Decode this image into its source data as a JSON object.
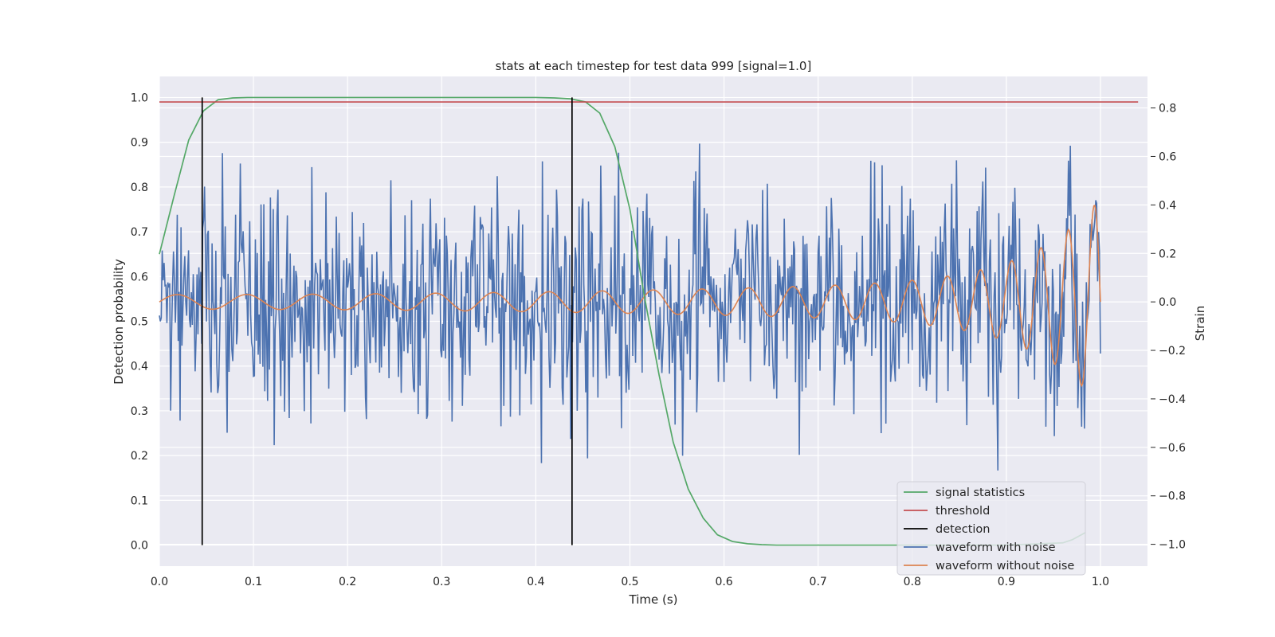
{
  "chart_data": {
    "type": "line",
    "title": "stats at each timestep for test data 999 [signal=1.0]",
    "xlabel": "Time (s)",
    "ylabel": "Detection probability",
    "y2label": "Strain",
    "xlim": [
      0.0,
      1.05
    ],
    "ylim": [
      -0.047,
      1.047
    ],
    "y2lim": [
      -1.09,
      0.93
    ],
    "xticks": [
      "0.0",
      "0.1",
      "0.2",
      "0.3",
      "0.4",
      "0.5",
      "0.6",
      "0.7",
      "0.8",
      "0.9",
      "1.0"
    ],
    "yticks": [
      "0.0",
      "0.1",
      "0.2",
      "0.3",
      "0.4",
      "0.5",
      "0.6",
      "0.7",
      "0.8",
      "0.9",
      "1.0"
    ],
    "y2ticks": [
      "−1.0",
      "−0.8",
      "−0.6",
      "−0.4",
      "−0.2",
      "0.0",
      "0.2",
      "0.4",
      "0.6",
      "0.8"
    ],
    "grid": true,
    "legend_position": "lower-right",
    "colors": {
      "background": "#eaeaf2",
      "grid": "#ffffff",
      "signal_statistics": "#55a868",
      "threshold": "#c44e52",
      "detection": "#000000",
      "waveform_with_noise": "#4c72b0",
      "waveform_without_noise": "#dd8452"
    },
    "series": [
      {
        "name": "signal statistics",
        "axis": "left",
        "x": [
          0.0,
          0.0156,
          0.0312,
          0.0468,
          0.0624,
          0.078,
          0.0936,
          0.1092,
          0.25,
          0.4,
          0.42,
          0.437,
          0.453,
          0.468,
          0.484,
          0.5,
          0.515,
          0.531,
          0.546,
          0.562,
          0.578,
          0.593,
          0.609,
          0.625,
          0.64,
          0.656,
          0.7,
          0.8,
          0.9,
          0.96,
          0.97,
          0.984
        ],
        "y": [
          0.65,
          0.78,
          0.905,
          0.97,
          0.995,
          0.999,
          1.0,
          1.0,
          1.0,
          1.0,
          0.999,
          0.997,
          0.99,
          0.965,
          0.89,
          0.75,
          0.56,
          0.38,
          0.23,
          0.125,
          0.06,
          0.023,
          0.008,
          0.003,
          0.001,
          0.0,
          0.0,
          0.0,
          0.0,
          0.005,
          0.012,
          0.028
        ]
      },
      {
        "name": "threshold",
        "axis": "left",
        "x": [
          0.0,
          1.04
        ],
        "y": [
          0.99,
          0.99
        ]
      },
      {
        "name": "detection",
        "axis": "left",
        "segments": [
          {
            "x": 0.0455,
            "y": [
              0.0,
              1.0
            ]
          },
          {
            "x": 0.4385,
            "y": [
              0.0,
              1.0
            ]
          }
        ]
      },
      {
        "name": "waveform with noise",
        "axis": "right",
        "generated": "noisy strain oscillating between about -0.85 and 0.8 over 0.0 to 1.0 s"
      },
      {
        "name": "waveform without noise",
        "axis": "right",
        "generated": "chirp oscillation growing from about ±0.03 at 0.0 s to about 0.45 / -0.42 near 1.0 s"
      }
    ]
  }
}
